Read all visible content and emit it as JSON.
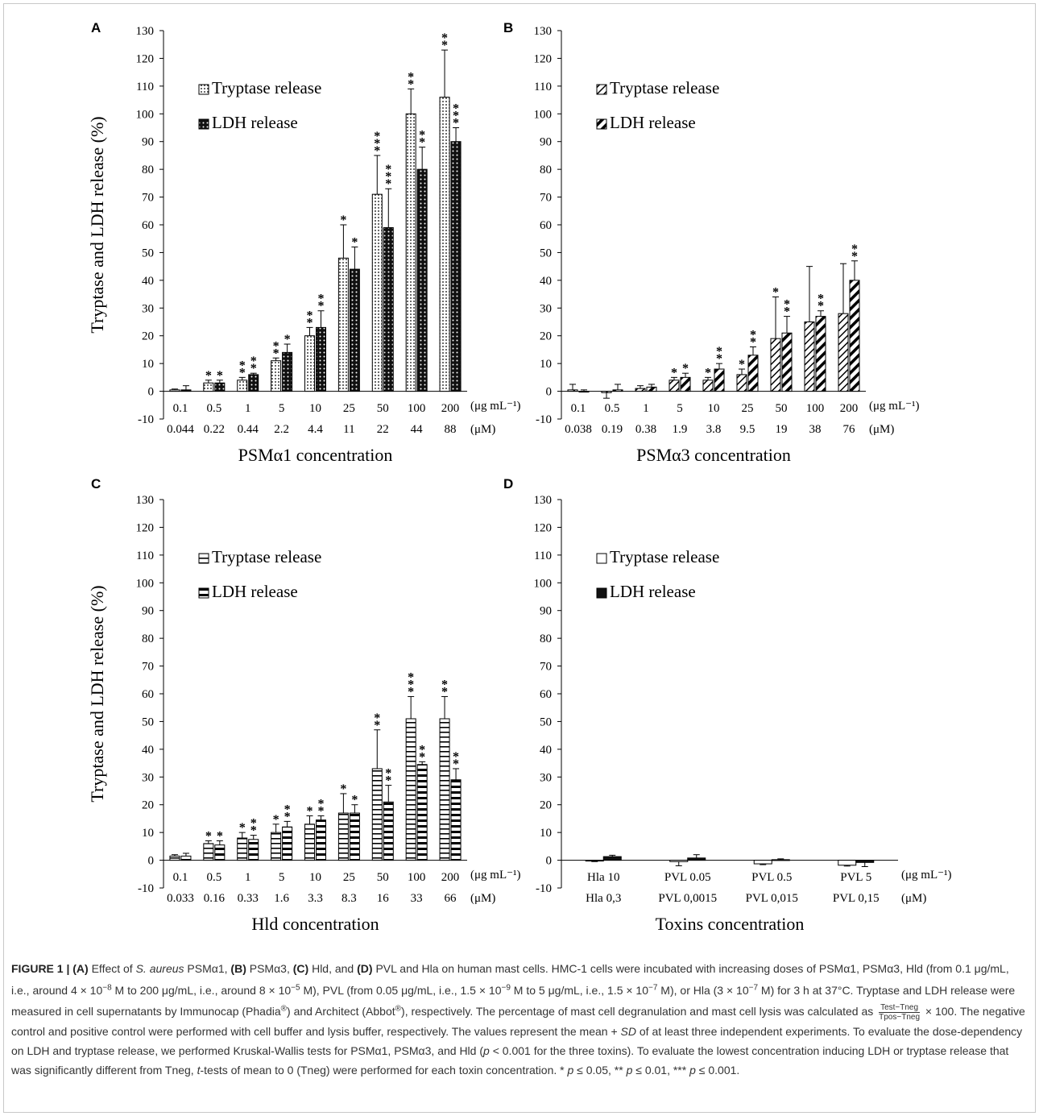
{
  "figure": {
    "shared_ylabel": "Tryptase and LDH release (%)",
    "y_ticks": [
      -10,
      0,
      10,
      20,
      30,
      40,
      50,
      60,
      70,
      80,
      90,
      100,
      110,
      120,
      130
    ],
    "unit_mass": "(μg mL⁻¹)",
    "unit_molar": "(μM)",
    "legend_tryptase": "Tryptase release",
    "legend_ldh": "LDH release"
  },
  "chart_data": [
    {
      "panel": "A",
      "type": "bar",
      "pattern": "dots",
      "xlabel": "PSMα1 concentration",
      "ylim": [
        -10,
        130
      ],
      "categories": [
        "0.1",
        "0.5",
        "1",
        "5",
        "10",
        "25",
        "50",
        "100",
        "200"
      ],
      "categories_molar": [
        "0.044",
        "0.22",
        "0.44",
        "2.2",
        "4.4",
        "11",
        "22",
        "44",
        "88"
      ],
      "series": [
        {
          "name": "Tryptase release",
          "values": [
            0.5,
            3,
            4,
            11,
            20,
            48,
            71,
            100,
            106
          ],
          "errors": [
            0.3,
            1,
            1,
            1,
            3,
            12,
            14,
            9,
            17
          ],
          "stars": [
            "",
            "*",
            "**",
            "**",
            "**",
            "*",
            "***",
            "**",
            "**"
          ]
        },
        {
          "name": "LDH release",
          "values": [
            0.5,
            3,
            6,
            14,
            23,
            44,
            59,
            80,
            90
          ],
          "errors": [
            1.5,
            1,
            0.5,
            3,
            6,
            8,
            14,
            8,
            5
          ],
          "stars": [
            "",
            "*",
            "**",
            "*",
            "**",
            "*",
            "***",
            "**",
            "***"
          ]
        }
      ]
    },
    {
      "panel": "B",
      "type": "bar",
      "pattern": "diagonal",
      "xlabel": "PSMα3 concentration",
      "ylim": [
        -10,
        130
      ],
      "categories": [
        "0.1",
        "0.5",
        "1",
        "5",
        "10",
        "25",
        "50",
        "100",
        "200"
      ],
      "categories_molar": [
        "0.038",
        "0.19",
        "0.38",
        "1.9",
        "3.8",
        "9.5",
        "19",
        "38",
        "76"
      ],
      "series": [
        {
          "name": "Tryptase release",
          "values": [
            0.5,
            -0.5,
            1,
            4,
            4,
            6,
            19,
            25,
            28
          ],
          "errors": [
            2,
            2,
            1,
            1,
            1,
            2,
            15,
            20,
            18
          ],
          "stars": [
            "",
            "",
            "",
            "*",
            "*",
            "*",
            "*",
            "",
            ""
          ]
        },
        {
          "name": "LDH release",
          "values": [
            0,
            0.5,
            1.5,
            5,
            8,
            13,
            21,
            27,
            40
          ],
          "errors": [
            0.5,
            2,
            1,
            1.5,
            2,
            3,
            6,
            2,
            7
          ],
          "stars": [
            "",
            "",
            "",
            "*",
            "**",
            "**",
            "**",
            "**",
            "**"
          ]
        }
      ]
    },
    {
      "panel": "C",
      "type": "bar",
      "pattern": "horizontal",
      "xlabel": "Hld concentration",
      "ylim": [
        -10,
        130
      ],
      "categories": [
        "0.1",
        "0.5",
        "1",
        "5",
        "10",
        "25",
        "50",
        "100",
        "200"
      ],
      "categories_molar": [
        "0.033",
        "0.16",
        "0.33",
        "1.6",
        "3.3",
        "8.3",
        "16",
        "33",
        "66"
      ],
      "series": [
        {
          "name": "Tryptase release",
          "values": [
            1.5,
            6,
            8,
            10,
            13,
            17,
            33,
            51,
            51
          ],
          "errors": [
            0.5,
            1,
            2,
            3,
            3,
            7,
            14,
            8,
            8
          ],
          "stars": [
            "",
            "*",
            "*",
            "*",
            "*",
            "*",
            "**",
            "***",
            "**"
          ]
        },
        {
          "name": "LDH release",
          "values": [
            1.5,
            5.5,
            7.5,
            12,
            14.5,
            17,
            21,
            34.5,
            29
          ],
          "errors": [
            1,
            1.5,
            1.5,
            2,
            1.5,
            3,
            6,
            1,
            4
          ],
          "stars": [
            "",
            "*",
            "**",
            "**",
            "**",
            "*",
            "**",
            "**",
            "**"
          ]
        }
      ]
    },
    {
      "panel": "D",
      "type": "bar",
      "pattern": "solid",
      "xlabel": "Toxins concentration",
      "ylim": [
        -10,
        130
      ],
      "categories": [
        "Hla 10",
        "PVL 0.05",
        "PVL 0.5",
        "PVL 5"
      ],
      "categories_molar": [
        "Hla 0,3",
        "PVL 0,0015",
        "PVL 0,015",
        "PVL 0,15"
      ],
      "series": [
        {
          "name": "Tryptase release",
          "values": [
            -0.3,
            -0.5,
            -1.3,
            -1.8
          ],
          "errors": [
            0.2,
            1.5,
            0.3,
            0.3
          ],
          "stars": [
            "",
            "",
            "",
            ""
          ]
        },
        {
          "name": "LDH release",
          "values": [
            1.3,
            0.8,
            0.2,
            -0.8
          ],
          "errors": [
            0.5,
            1.2,
            0.3,
            1.5
          ],
          "stars": [
            "",
            "",
            "",
            ""
          ]
        }
      ]
    }
  ],
  "caption": {
    "figure_label": "FIGURE 1 |",
    "text_parts": [
      {
        "b": "(A)"
      },
      {
        "t": " Effect of "
      },
      {
        "i": "S. aureus"
      },
      {
        "t": " PSMα1, "
      },
      {
        "b": "(B)"
      },
      {
        "t": " PSMα3, "
      },
      {
        "b": "(C)"
      },
      {
        "t": " Hld, and "
      },
      {
        "b": "(D)"
      },
      {
        "t": " PVL and Hla on human mast cells. HMC-1 cells were incubated with increasing doses of PSMα1, PSMα3, Hld (from 0.1 μg/mL, i.e., around 4 × 10"
      },
      {
        "sup": "−8"
      },
      {
        "t": " M to 200 μg/mL, i.e., around 8 × 10"
      },
      {
        "sup": "−5"
      },
      {
        "t": " M), PVL (from 0.05 μg/mL, i.e., 1.5 × 10"
      },
      {
        "sup": "−9"
      },
      {
        "t": " M to 5 μg/mL, i.e., 1.5 × 10"
      },
      {
        "sup": "−7"
      },
      {
        "t": " M), or Hla (3 × 10"
      },
      {
        "sup": "−7"
      },
      {
        "t": " M) for 3 h at 37°C. Tryptase and LDH release were measured in cell supernatants by Immunocap (Phadia"
      },
      {
        "sup": "®"
      },
      {
        "t": ") and Architect (Abbot"
      },
      {
        "sup": "®"
      },
      {
        "t": "), respectively. The percentage of mast cell degranulation and mast cell lysis was calculated as "
      },
      {
        "frac": [
          "Test−Tneg",
          "Tpos−Tneg"
        ]
      },
      {
        "t": " × 100. The negative control and positive control were performed with cell buffer and lysis buffer, respectively. The values represent the mean + "
      },
      {
        "i": "SD"
      },
      {
        "t": " of at least three independent experiments. To evaluate the dose-dependency on LDH and tryptase release, we performed Kruskal-Wallis tests for PSMα1, PSMα3, and Hld ("
      },
      {
        "i": "p"
      },
      {
        "t": " < 0.001 for the three toxins). To evaluate the lowest concentration inducing LDH or tryptase release that was significantly different from Tneg, "
      },
      {
        "i": "t"
      },
      {
        "t": "-tests of mean to 0 (Tneg) were performed for each toxin concentration. * "
      },
      {
        "i": "p"
      },
      {
        "t": " ≤ 0.05, ** "
      },
      {
        "i": "p"
      },
      {
        "t": " ≤ 0.01, *** "
      },
      {
        "i": "p"
      },
      {
        "t": " ≤ 0.001."
      }
    ]
  },
  "colors": {
    "bar_fill": "#ffffff",
    "bar_edge": "#000000",
    "ldh_dark": "#1a1a1a",
    "caption_text": "#333333"
  }
}
